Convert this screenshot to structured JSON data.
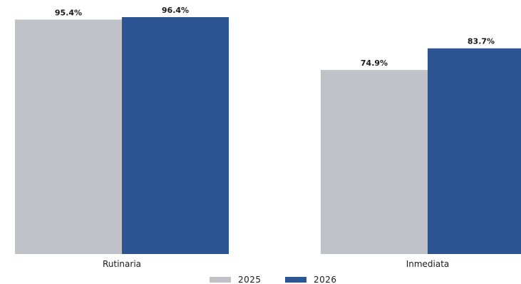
{
  "chart_data": {
    "type": "bar",
    "title": "",
    "xlabel": "",
    "ylabel": "",
    "categories": [
      "Rutinaria",
      "Inmediata"
    ],
    "series": [
      {
        "name": "2025",
        "values": [
          95.4,
          74.9
        ],
        "labels": [
          "95.4%",
          "74.9%"
        ],
        "color": "#bfc3c7"
      },
      {
        "name": "2026",
        "values": [
          96.4,
          83.7
        ],
        "labels": [
          "96.4%",
          "83.7%"
        ],
        "color": "#2e5593"
      }
    ],
    "ylim": [
      0,
      100
    ],
    "grid": false,
    "legend_position": "bottom-center"
  }
}
